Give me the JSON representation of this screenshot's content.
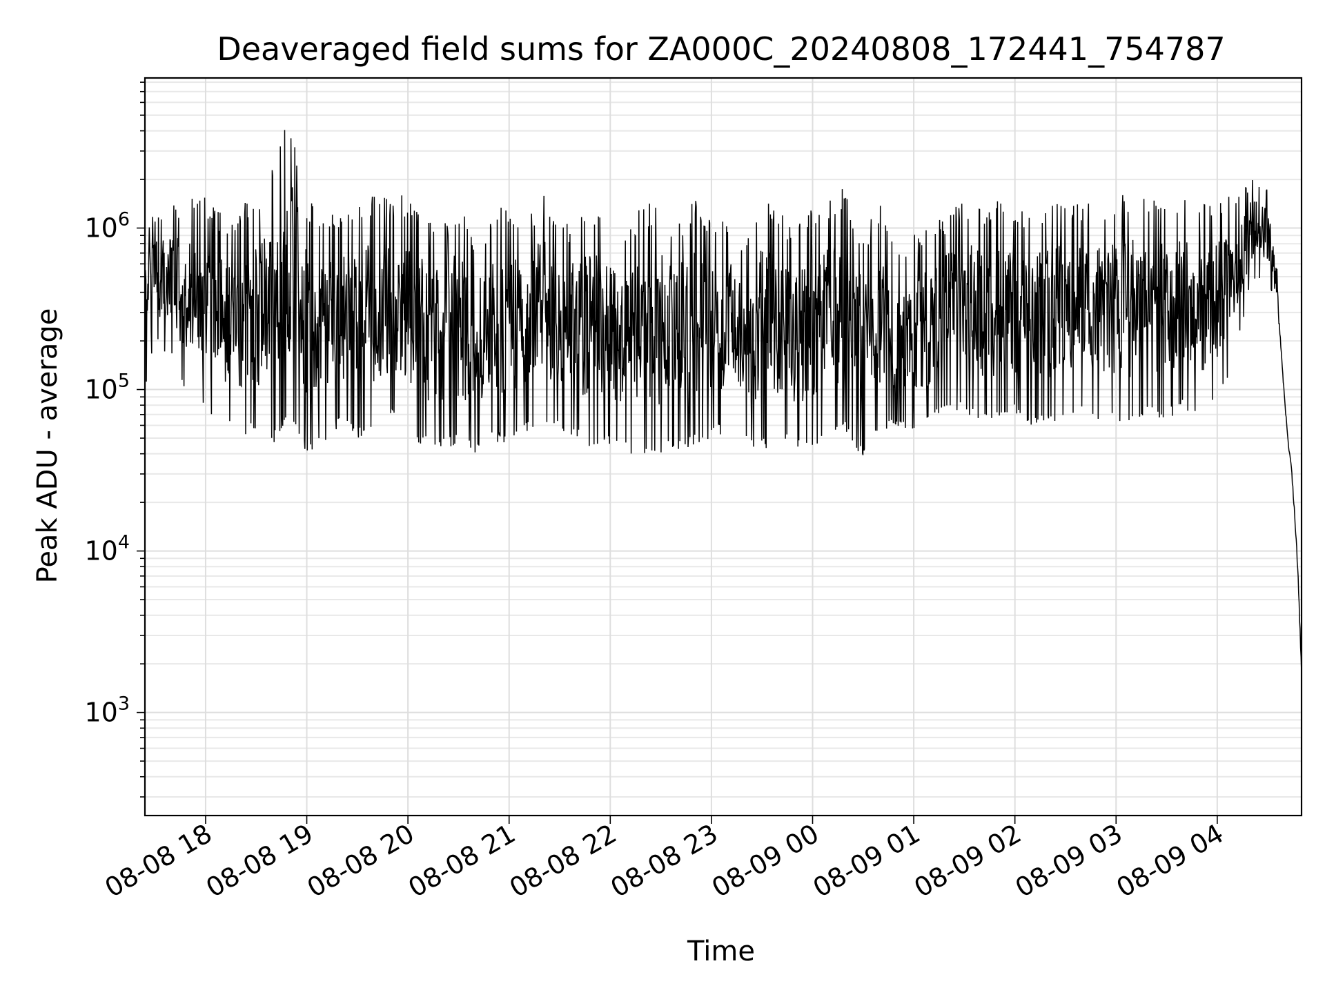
{
  "chart_data": {
    "type": "line",
    "title": "Deaveraged field sums for ZA000C_20240808_172441_754787",
    "xlabel": "Time",
    "ylabel": "Peak ADU - average",
    "y_scale": "log",
    "grid": true,
    "xlim": [
      "2024-08-08 17:24",
      "2024-08-09 04:50"
    ],
    "ylim": [
      230,
      8500000
    ],
    "x_tick_values": [
      "2024-08-08 18:00",
      "2024-08-08 19:00",
      "2024-08-08 20:00",
      "2024-08-08 21:00",
      "2024-08-08 22:00",
      "2024-08-08 23:00",
      "2024-08-09 00:00",
      "2024-08-09 01:00",
      "2024-08-09 02:00",
      "2024-08-09 03:00",
      "2024-08-09 04:00"
    ],
    "x_tick_labels": [
      "08-08 18",
      "08-08 19",
      "08-08 20",
      "08-08 21",
      "08-08 22",
      "08-08 23",
      "08-09 00",
      "08-09 01",
      "08-09 02",
      "08-09 03",
      "08-09 04"
    ],
    "y_ticks": [
      {
        "value": 1000,
        "base": "10",
        "exp": "3"
      },
      {
        "value": 10000,
        "base": "10",
        "exp": "4"
      },
      {
        "value": 100000,
        "base": "10",
        "exp": "5"
      },
      {
        "value": 1000000,
        "base": "10",
        "exp": "6"
      }
    ],
    "line_color": "#000000",
    "series": [
      {
        "x": [
          "2024-08-08 17:24",
          "2024-08-08 17:30",
          "2024-08-08 17:40",
          "2024-08-08 17:50",
          "2024-08-08 18:00",
          "2024-08-08 18:10",
          "2024-08-08 18:20",
          "2024-08-08 18:30",
          "2024-08-08 18:40",
          "2024-08-08 18:50",
          "2024-08-08 19:00",
          "2024-08-08 19:10",
          "2024-08-08 19:20",
          "2024-08-08 19:30",
          "2024-08-08 19:40",
          "2024-08-08 19:50",
          "2024-08-08 20:00",
          "2024-08-08 20:10",
          "2024-08-08 20:20",
          "2024-08-08 20:30",
          "2024-08-08 20:40",
          "2024-08-08 20:50",
          "2024-08-08 21:00",
          "2024-08-08 21:10",
          "2024-08-08 21:20",
          "2024-08-08 21:30",
          "2024-08-08 21:40",
          "2024-08-08 21:50",
          "2024-08-08 22:00",
          "2024-08-08 22:10",
          "2024-08-08 22:20",
          "2024-08-08 22:30",
          "2024-08-08 22:40",
          "2024-08-08 22:50",
          "2024-08-08 23:00",
          "2024-08-08 23:10",
          "2024-08-08 23:20",
          "2024-08-08 23:30",
          "2024-08-08 23:40",
          "2024-08-08 23:50",
          "2024-08-09 00:00",
          "2024-08-09 00:10",
          "2024-08-09 00:20",
          "2024-08-09 00:30",
          "2024-08-09 00:40",
          "2024-08-09 00:50",
          "2024-08-09 01:00",
          "2024-08-09 01:10",
          "2024-08-09 01:20",
          "2024-08-09 01:30",
          "2024-08-09 01:40",
          "2024-08-09 01:50",
          "2024-08-09 02:00",
          "2024-08-09 02:10",
          "2024-08-09 02:20",
          "2024-08-09 02:30",
          "2024-08-09 02:40",
          "2024-08-09 02:50",
          "2024-08-09 03:00",
          "2024-08-09 03:10",
          "2024-08-09 03:20",
          "2024-08-09 03:30",
          "2024-08-09 03:40",
          "2024-08-09 03:50",
          "2024-08-09 04:00",
          "2024-08-09 04:10",
          "2024-08-09 04:20",
          "2024-08-09 04:30",
          "2024-08-09 04:35",
          "2024-08-09 04:38",
          "2024-08-09 04:40",
          "2024-08-09 04:42",
          "2024-08-09 04:44",
          "2024-08-09 04:46",
          "2024-08-09 04:48",
          "2024-08-09 04:50"
        ],
        "y_high": [
          1200000,
          1300000,
          1400000,
          1500000,
          1600000,
          1200000,
          1400000,
          1500000,
          2500000,
          5500000,
          1500000,
          1400000,
          1300000,
          1500000,
          1600000,
          1500000,
          1700000,
          1200000,
          1000000,
          1500000,
          900000,
          1200000,
          1500000,
          1000000,
          1900000,
          1000000,
          1200000,
          1400000,
          1200000,
          1000000,
          1500000,
          1400000,
          1100000,
          1600000,
          1200000,
          1200000,
          800000,
          1600000,
          1400000,
          1000000,
          1500000,
          1600000,
          1800000,
          900000,
          1500000,
          700000,
          1000000,
          1100000,
          1200000,
          1600000,
          1300000,
          1500000,
          1400000,
          1300000,
          1600000,
          1600000,
          1500000,
          1500000,
          1600000,
          1700000,
          1600000,
          1500000,
          1600000,
          1500000,
          1500000,
          1600000,
          2000000,
          1800000,
          700000,
          180000,
          90000,
          50000,
          35000,
          18000,
          8000,
          2000
        ],
        "y_low": [
          90000,
          200000,
          150000,
          80000,
          70000,
          60000,
          50000,
          55000,
          45000,
          70000,
          40000,
          45000,
          60000,
          50000,
          55000,
          70000,
          50000,
          45000,
          42000,
          45000,
          40000,
          48000,
          45000,
          55000,
          60000,
          55000,
          50000,
          42000,
          45000,
          40000,
          36000,
          40000,
          42000,
          45000,
          50000,
          55000,
          45000,
          42000,
          48000,
          42000,
          45000,
          50000,
          55000,
          36000,
          55000,
          60000,
          55000,
          60000,
          80000,
          70000,
          60000,
          65000,
          70000,
          60000,
          60000,
          65000,
          70000,
          65000,
          60000,
          60000,
          70000,
          65000,
          75000,
          70000,
          80000,
          150000,
          450000,
          500000,
          300000,
          150000,
          80000,
          45000,
          30000,
          15000,
          6000,
          1500
        ]
      }
    ]
  }
}
